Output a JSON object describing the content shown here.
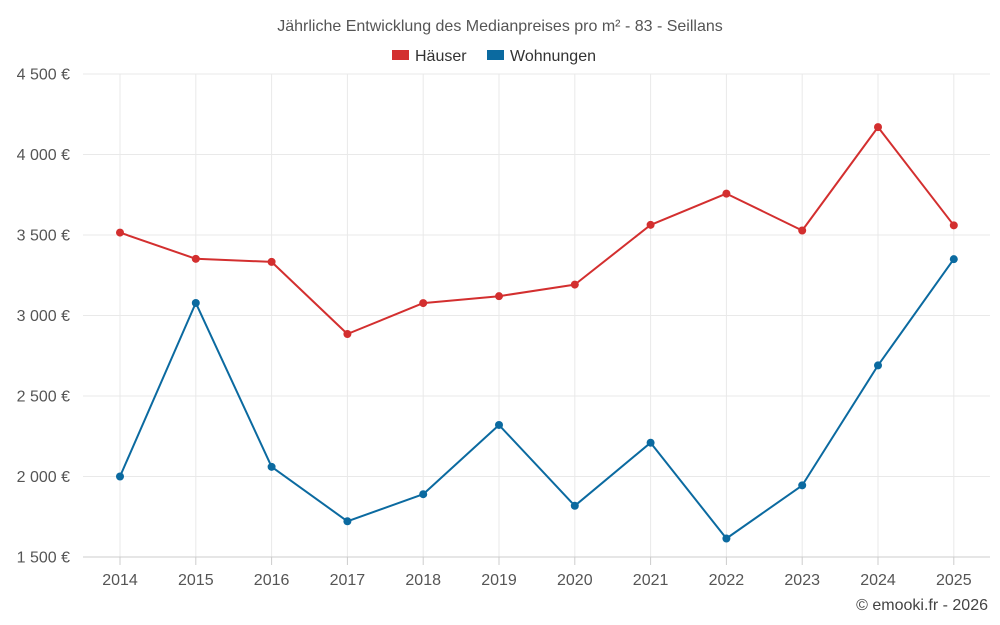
{
  "chart_data": {
    "type": "line",
    "title": "Jährliche Entwicklung des Medianpreises pro m² - 83 - Seillans",
    "categories": [
      "2014",
      "2015",
      "2016",
      "2017",
      "2018",
      "2019",
      "2020",
      "2021",
      "2022",
      "2023",
      "2024",
      "2025"
    ],
    "series": [
      {
        "name": "Häuser",
        "color": "#d32f2f",
        "values": [
          3515,
          3352,
          3333,
          2885,
          3077,
          3120,
          3192,
          3563,
          3757,
          3528,
          4170,
          3560
        ]
      },
      {
        "name": "Wohnungen",
        "color": "#0b6aa0",
        "values": [
          2000,
          3078,
          2060,
          1722,
          1890,
          2320,
          1818,
          2210,
          1615,
          1945,
          2690,
          3350
        ]
      }
    ],
    "yticks": [
      "1 500 €",
      "2 000 €",
      "2 500 €",
      "3 000 €",
      "3 500 €",
      "4 000 €",
      "4 500 €"
    ],
    "ytick_values": [
      1500,
      2000,
      2500,
      3000,
      3500,
      4000,
      4500
    ],
    "ylim": [
      1500,
      4500
    ],
    "xlabel": "",
    "ylabel": "",
    "legend_position": "top-center",
    "grid": true
  },
  "credit": "© emooki.fr - 2026"
}
